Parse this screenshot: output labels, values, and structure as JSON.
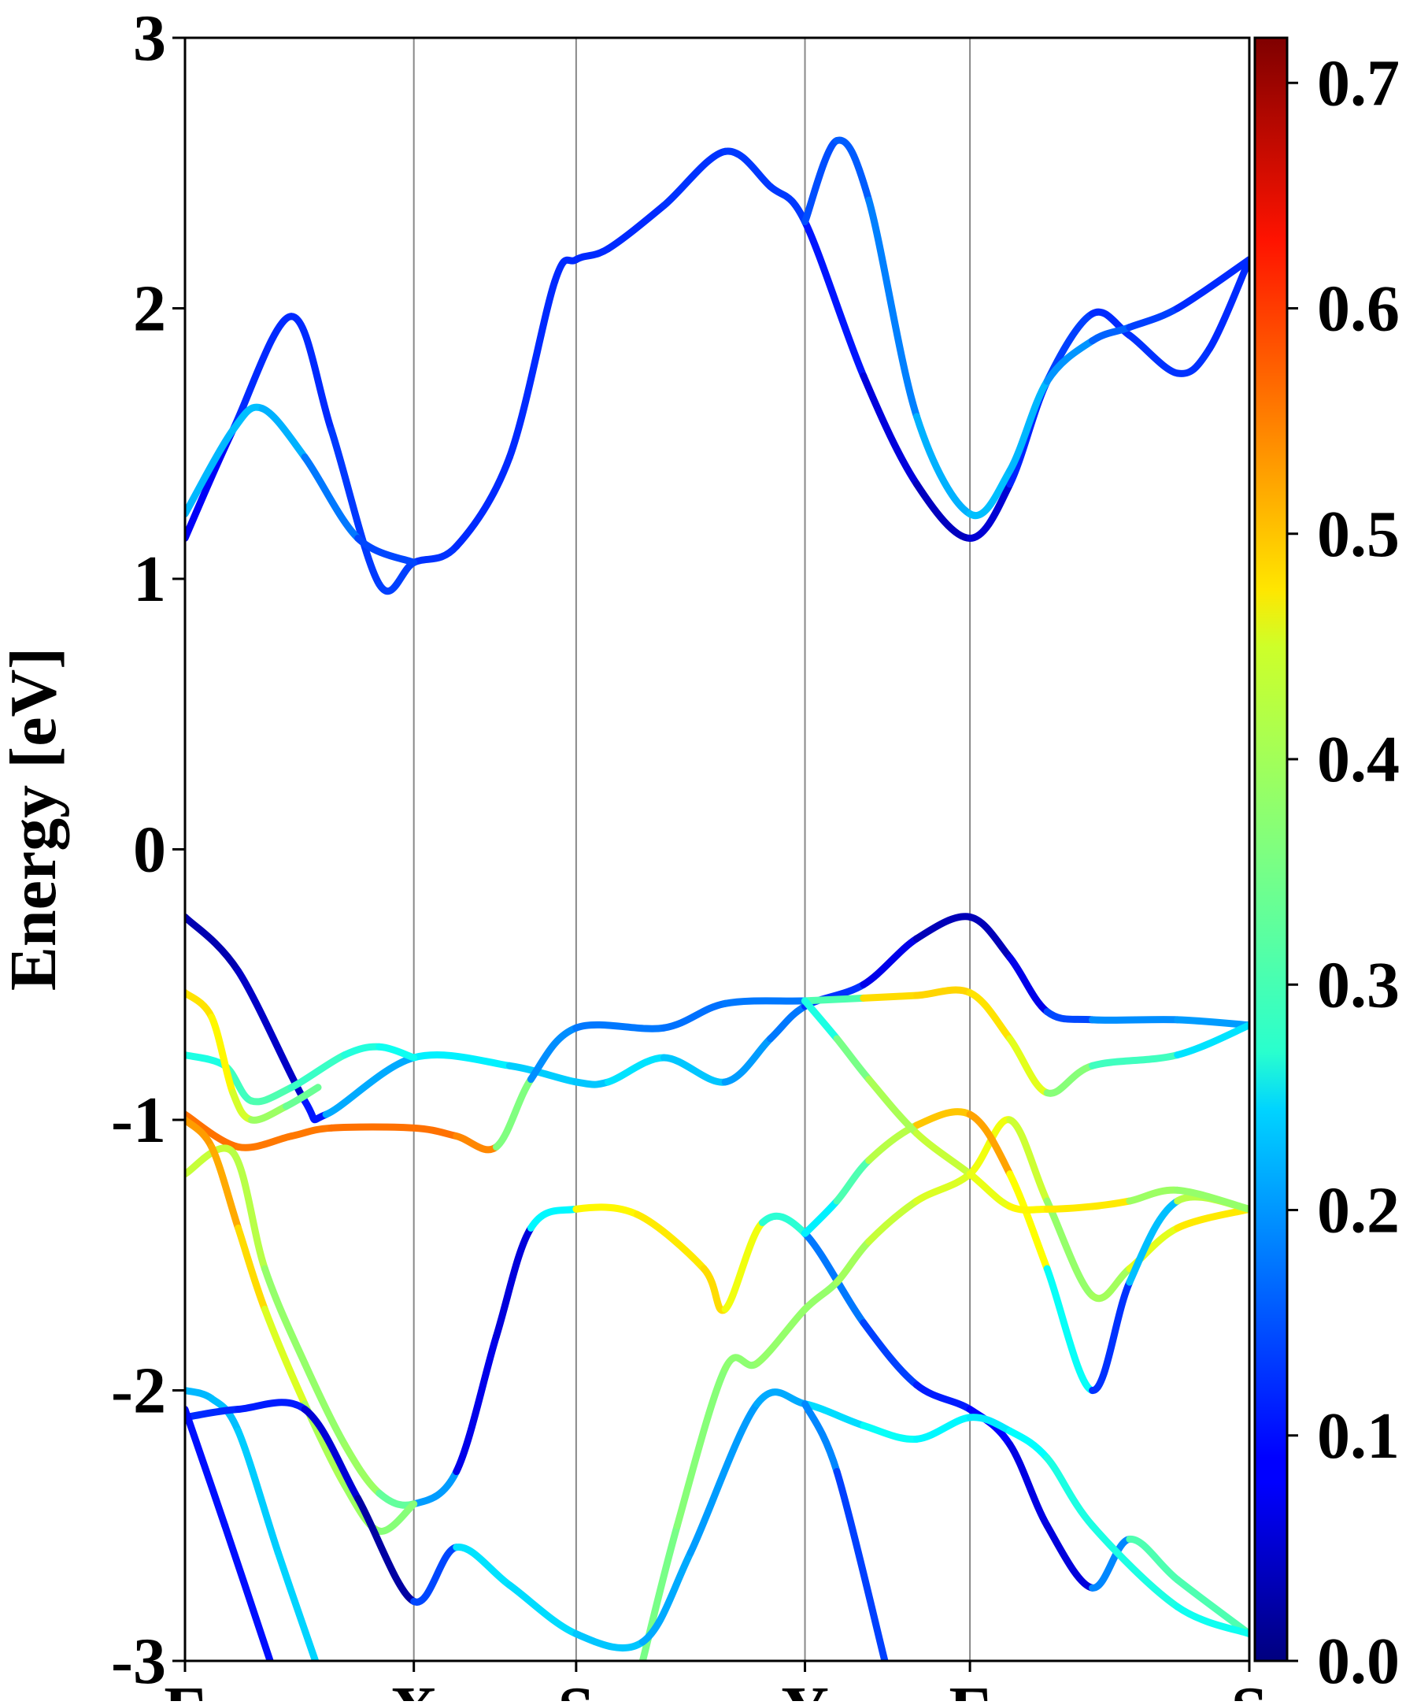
{
  "chart_data": {
    "type": "band-structure",
    "ylabel": "Energy [eV]",
    "xlim": [
      0,
      4.0
    ],
    "ylim": [
      -3,
      3
    ],
    "xticks": [
      {
        "value": 0,
        "label": "Γ"
      },
      {
        "value": 0.86,
        "label": "X"
      },
      {
        "value": 1.47,
        "label": "S"
      },
      {
        "value": 2.33,
        "label": "Y"
      },
      {
        "value": 2.95,
        "label": "Γ"
      },
      {
        "value": 4.0,
        "label": "S"
      }
    ],
    "yticks": [
      -3,
      -2,
      -1,
      0,
      1,
      2,
      3
    ],
    "grid": "x",
    "colormap": "jet",
    "clim": [
      0,
      0.72
    ],
    "cticks": [
      {
        "value": 0,
        "label": "0.0"
      },
      0.1,
      0.2,
      0.3,
      0.4,
      0.5,
      0.6,
      0.7
    ],
    "series": [
      {
        "x": [
          0,
          0.18,
          0.4,
          0.55,
          0.73,
          0.86,
          1.02,
          1.22,
          1.39,
          1.47,
          1.59,
          1.8,
          2.03,
          2.2,
          2.33,
          2.55,
          2.75,
          2.95,
          3.1,
          3.24,
          3.41,
          3.55,
          3.73,
          3.85,
          4.0
        ],
        "values": [
          1.15,
          1.55,
          1.97,
          1.55,
          0.98,
          1.06,
          1.12,
          1.45,
          2.1,
          2.18,
          2.22,
          2.38,
          2.58,
          2.45,
          2.32,
          1.75,
          1.35,
          1.15,
          1.35,
          1.73,
          1.98,
          1.9,
          1.76,
          1.85,
          2.18
        ],
        "weights": [
          0.05,
          0.12,
          0.12,
          0.12,
          0.14,
          0.13,
          0.12,
          0.12,
          0.12,
          0.12,
          0.12,
          0.12,
          0.13,
          0.13,
          0.13,
          0.08,
          0.05,
          0.04,
          0.08,
          0.15,
          0.12,
          0.12,
          0.13,
          0.12,
          0.12
        ]
      },
      {
        "x": [
          0,
          0.18,
          0.29,
          0.45,
          0.65,
          0.86
        ],
        "values": [
          1.24,
          1.55,
          1.63,
          1.45,
          1.15,
          1.06
        ],
        "weights": [
          0.22,
          0.22,
          0.23,
          0.2,
          0.15,
          0.13
        ]
      },
      {
        "x": [
          2.33,
          2.45,
          2.57,
          2.75,
          2.95,
          3.1,
          3.24,
          3.41,
          3.55,
          3.73,
          4.0
        ],
        "values": [
          2.32,
          2.62,
          2.4,
          1.6,
          1.24,
          1.4,
          1.73,
          1.88,
          1.93,
          2.0,
          2.18
        ],
        "weights": [
          0.14,
          0.15,
          0.16,
          0.2,
          0.23,
          0.22,
          0.22,
          0.17,
          0.15,
          0.12,
          0.12
        ]
      },
      {
        "x": [
          0,
          0.2,
          0.45,
          0.53,
          0.86,
          1.22,
          1.47,
          1.59,
          1.8,
          2.03,
          2.2,
          2.33,
          2.55,
          2.75,
          2.95,
          3.1,
          3.24,
          3.41,
          3.73,
          4.0
        ],
        "values": [
          -0.25,
          -0.45,
          -0.93,
          -0.98,
          -0.77,
          -0.8,
          -0.86,
          -0.86,
          -0.77,
          -0.86,
          -0.7,
          -0.58,
          -0.5,
          -0.33,
          -0.25,
          -0.4,
          -0.6,
          -0.63,
          -0.63,
          -0.65
        ],
        "weights": [
          0.03,
          0.04,
          0.06,
          0.15,
          0.27,
          0.25,
          0.22,
          0.24,
          0.26,
          0.2,
          0.2,
          0.15,
          0.1,
          0.05,
          0.03,
          0.05,
          0.1,
          0.18,
          0.2,
          0.2
        ]
      },
      {
        "x": [
          0,
          0.15,
          0.25,
          0.4,
          0.6,
          0.73,
          0.86
        ],
        "values": [
          -0.76,
          -0.8,
          -0.93,
          -0.88,
          -0.76,
          -0.73,
          -0.77
        ],
        "weights": [
          0.28,
          0.3,
          0.33,
          0.32,
          0.3,
          0.29,
          0.27
        ]
      },
      {
        "x": [
          0,
          0.1,
          0.18,
          0.25,
          0.38,
          0.5
        ],
        "values": [
          -0.53,
          -0.62,
          -0.9,
          -1.0,
          -0.95,
          -0.88
        ],
        "weights": [
          0.47,
          0.47,
          0.44,
          0.4,
          0.36,
          0.33
        ]
      },
      {
        "x": [
          0,
          0.2,
          0.4,
          0.55,
          0.86,
          1.02,
          1.17,
          1.3,
          1.47,
          1.8,
          2.03,
          2.33,
          2.55,
          2.75,
          2.95,
          3.1,
          3.24,
          3.41,
          3.73,
          4.0
        ],
        "values": [
          -0.98,
          -1.1,
          -1.06,
          -1.03,
          -1.03,
          -1.06,
          -1.1,
          -0.85,
          -0.66,
          -0.66,
          -0.57,
          -0.56,
          -0.55,
          -0.54,
          -0.53,
          -0.7,
          -0.9,
          -0.8,
          -0.76,
          -0.65
        ],
        "weights": [
          0.55,
          0.55,
          0.54,
          0.55,
          0.55,
          0.55,
          0.52,
          0.2,
          0.18,
          0.17,
          0.17,
          0.18,
          0.47,
          0.48,
          0.48,
          0.46,
          0.4,
          0.33,
          0.3,
          0.2
        ]
      },
      {
        "x": [
          0,
          0.18,
          0.3,
          0.45,
          0.6,
          0.73,
          0.86,
          1.02,
          1.17,
          1.3,
          1.47,
          1.7,
          1.95,
          2.03,
          2.17,
          2.33,
          2.55,
          2.75,
          2.95,
          3.1,
          3.24,
          3.41,
          3.55,
          3.73,
          4.0
        ],
        "values": [
          -1.2,
          -1.12,
          -1.55,
          -1.9,
          -2.2,
          -2.38,
          -2.42,
          -2.3,
          -1.8,
          -1.4,
          -1.33,
          -1.35,
          -1.55,
          -1.7,
          -1.38,
          -1.42,
          -1.75,
          -1.98,
          -2.07,
          -2.2,
          -2.5,
          -2.73,
          -2.55,
          -2.7,
          -2.9
        ],
        "weights": [
          0.4,
          0.42,
          0.38,
          0.37,
          0.38,
          0.38,
          0.3,
          0.1,
          0.05,
          0.08,
          0.45,
          0.46,
          0.47,
          0.48,
          0.4,
          0.2,
          0.15,
          0.12,
          0.1,
          0.08,
          0.06,
          0.07,
          0.3,
          0.35,
          0.3
        ]
      },
      {
        "x": [
          0,
          0.1,
          0.2,
          0.3,
          0.45,
          0.6,
          0.73,
          0.86
        ],
        "values": [
          -1.0,
          -1.1,
          -1.4,
          -1.7,
          -2.05,
          -2.35,
          -2.52,
          -2.42
        ],
        "weights": [
          0.52,
          0.52,
          0.5,
          0.45,
          0.4,
          0.38,
          0.38,
          0.35
        ]
      },
      {
        "x": [
          1.72,
          1.85,
          2.03,
          2.15,
          2.33,
          2.45,
          2.57,
          2.75,
          2.95,
          3.1,
          3.24,
          3.41,
          3.55,
          3.73,
          4.0
        ],
        "values": [
          -3.0,
          -2.5,
          -1.92,
          -1.9,
          -1.7,
          -1.6,
          -1.45,
          -1.3,
          -1.2,
          -1.0,
          -1.3,
          -1.65,
          -1.55,
          -1.4,
          -1.33
        ],
        "weights": [
          0.35,
          0.36,
          0.37,
          0.37,
          0.38,
          0.37,
          0.4,
          0.42,
          0.43,
          0.45,
          0.38,
          0.37,
          0.4,
          0.46,
          0.47
        ]
      },
      {
        "x": [
          2.33,
          2.45,
          2.57,
          2.75,
          2.95,
          3.1,
          3.24,
          3.41,
          3.55,
          3.73,
          4.0
        ],
        "values": [
          -1.42,
          -1.3,
          -1.15,
          -1.02,
          -0.98,
          -1.2,
          -1.55,
          -2.0,
          -1.6,
          -1.3,
          -1.33
        ],
        "weights": [
          0.22,
          0.3,
          0.35,
          0.45,
          0.53,
          0.5,
          0.4,
          0.15,
          0.1,
          0.35,
          0.45
        ]
      },
      {
        "x": [
          2.33,
          2.45,
          2.57,
          2.75,
          2.95,
          3.1,
          3.24,
          3.41,
          3.55,
          3.73,
          4.0
        ],
        "values": [
          -0.56,
          -0.7,
          -0.85,
          -1.05,
          -1.2,
          -1.32,
          -1.33,
          -1.32,
          -1.3,
          -1.26,
          -1.33
        ],
        "weights": [
          0.25,
          0.33,
          0.38,
          0.4,
          0.42,
          0.45,
          0.46,
          0.47,
          0.46,
          0.3,
          0.45
        ]
      },
      {
        "x": [
          0,
          0.1,
          0.2,
          0.35,
          0.49
        ],
        "values": [
          -2.0,
          -2.03,
          -2.15,
          -2.6,
          -3.0
        ],
        "weights": [
          0.22,
          0.22,
          0.23,
          0.24,
          0.24
        ]
      },
      {
        "x": [
          0,
          0.2,
          0.45,
          0.65,
          0.86,
          1.02,
          1.22,
          1.47,
          1.72,
          1.9,
          2.15,
          2.33,
          2.55,
          2.75,
          2.95,
          3.1,
          3.24,
          3.41,
          3.73,
          4.0
        ],
        "values": [
          -2.1,
          -2.07,
          -2.07,
          -2.4,
          -2.78,
          -2.58,
          -2.72,
          -2.9,
          -2.93,
          -2.6,
          -2.05,
          -2.05,
          -2.13,
          -2.18,
          -2.1,
          -2.15,
          -2.25,
          -2.5,
          -2.8,
          -2.9
        ],
        "weights": [
          0.12,
          0.12,
          0.1,
          0.02,
          0.03,
          0.25,
          0.25,
          0.24,
          0.22,
          0.2,
          0.2,
          0.22,
          0.27,
          0.28,
          0.25,
          0.26,
          0.28,
          0.3,
          0.28,
          0.28
        ]
      },
      {
        "x": [
          0,
          0.15,
          0.32
        ],
        "values": [
          -2.07,
          -2.5,
          -3.0
        ],
        "weights": [
          0.1,
          0.1,
          0.1
        ]
      },
      {
        "x": [
          2.33,
          2.45,
          2.63
        ],
        "values": [
          -2.05,
          -2.3,
          -3.0
        ],
        "weights": [
          0.22,
          0.15,
          0.12
        ]
      }
    ]
  }
}
